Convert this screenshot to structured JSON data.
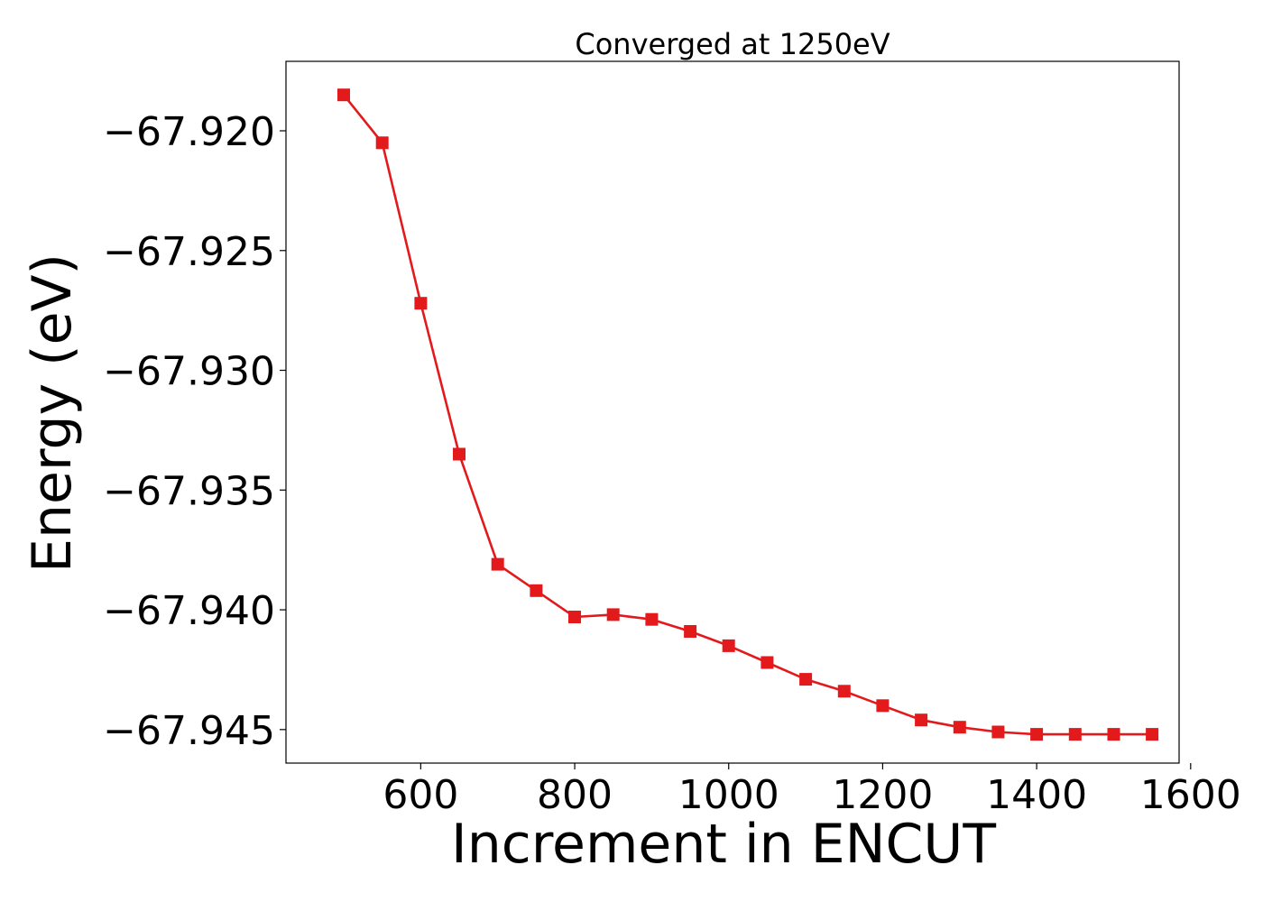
{
  "chart_data": {
    "type": "line",
    "title": "Converged at 1250eV",
    "xlabel": "Increment in ENCUT",
    "ylabel": "Energy (eV)",
    "xlim": [
      425,
      1585
    ],
    "ylim": [
      -67.9464,
      -67.9171
    ],
    "xticks": [
      600,
      800,
      1000,
      1200,
      1400,
      1600
    ],
    "yticks": [
      -67.92,
      -67.925,
      -67.93,
      -67.935,
      -67.94,
      -67.945
    ],
    "ytick_labels": [
      "−67.920",
      "−67.925",
      "−67.930",
      "−67.935",
      "−67.940",
      "−67.945"
    ],
    "grid": false,
    "marker": "square",
    "series": [
      {
        "color": "#e31a1c",
        "x": [
          500,
          550,
          600,
          650,
          700,
          750,
          800,
          850,
          900,
          950,
          1000,
          1050,
          1100,
          1150,
          1200,
          1250,
          1300,
          1350,
          1400,
          1450,
          1500,
          1550
        ],
        "y": [
          -67.9185,
          -67.9205,
          -67.9272,
          -67.9335,
          -67.9381,
          -67.9392,
          -67.9403,
          -67.9402,
          -67.9404,
          -67.9409,
          -67.9415,
          -67.9422,
          -67.9429,
          -67.9434,
          -67.944,
          -67.9446,
          -67.9449,
          -67.9451,
          -67.9452,
          -67.9452,
          -67.9452,
          -67.9452
        ]
      }
    ]
  }
}
